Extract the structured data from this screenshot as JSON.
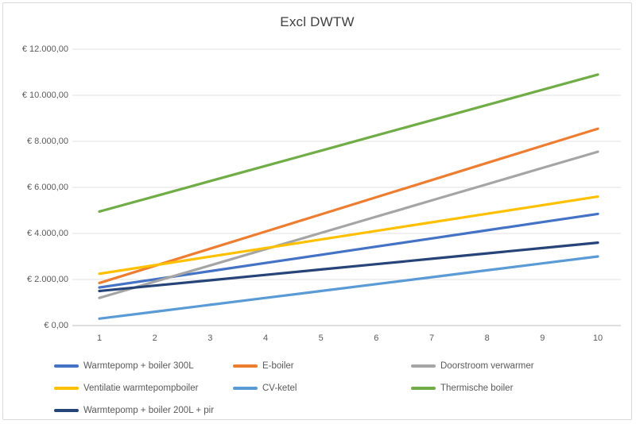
{
  "styles": {
    "background": "#FFFFFF",
    "border_color": "#D9D9D9",
    "gridline_color": "#E2E2E2",
    "axis_line_color": "#BFBFBF",
    "title_color": "#404040",
    "label_color": "#595959"
  },
  "chart_data": {
    "type": "line",
    "title": "Excl DWTW",
    "xlabel": "",
    "ylabel": "",
    "x": [
      1,
      2,
      3,
      4,
      5,
      6,
      7,
      8,
      9,
      10
    ],
    "x_tick_labels": [
      "1",
      "2",
      "3",
      "4",
      "5",
      "6",
      "7",
      "8",
      "9",
      "10"
    ],
    "ylim": [
      0,
      12000
    ],
    "y_tick_step": 2000,
    "y_tick_labels": [
      "€ 0,00",
      "€ 2.000,00",
      "€ 4.000,00",
      "€ 6.000,00",
      "€ 8.000,00",
      "€ 10.000,00",
      "€ 12.000,00"
    ],
    "grid": "horizontal",
    "legend_position": "bottom",
    "series": [
      {
        "name": "Warmtepomp + boiler 300L",
        "color": "#4472C4",
        "values": [
          1650,
          2006,
          2361,
          2717,
          3072,
          3428,
          3783,
          4139,
          4494,
          4850
        ]
      },
      {
        "name": "E-boiler",
        "color": "#ED7D31",
        "values": [
          1850,
          2594,
          3339,
          4083,
          4828,
          5572,
          6317,
          7061,
          7806,
          8550
        ]
      },
      {
        "name": "Doorstroom verwarmer",
        "color": "#A5A5A5",
        "values": [
          1200,
          1906,
          2611,
          3317,
          4022,
          4728,
          5433,
          6139,
          6844,
          7550
        ]
      },
      {
        "name": "Ventilatie warmtepompboiler",
        "color": "#FFC000",
        "values": [
          2250,
          2622,
          2994,
          3367,
          3739,
          4111,
          4483,
          4856,
          5228,
          5600
        ]
      },
      {
        "name": "CV-ketel",
        "color": "#5B9BD5",
        "values": [
          300,
          600,
          900,
          1200,
          1500,
          1800,
          2100,
          2400,
          2700,
          3000
        ]
      },
      {
        "name": "Thermische boiler",
        "color": "#70AD47",
        "values": [
          4950,
          5611,
          6272,
          6933,
          7594,
          8256,
          8917,
          9578,
          10239,
          10900
        ]
      },
      {
        "name": "Warmtepomp + boiler 200L + pir",
        "color": "#264478",
        "values": [
          1500,
          1733,
          1967,
          2200,
          2433,
          2667,
          2900,
          3133,
          3367,
          3600
        ]
      }
    ]
  }
}
